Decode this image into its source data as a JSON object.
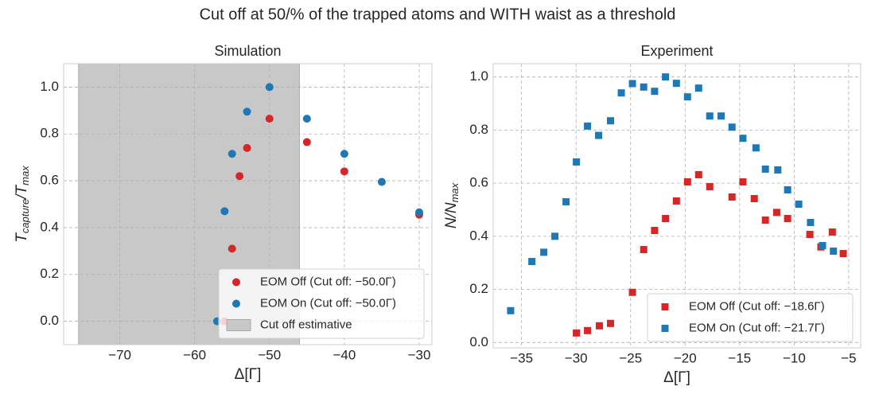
{
  "title": "Cut off at 50/% of the trapped atoms and WITH waist as a threshold",
  "chart_data": [
    {
      "type": "scatter",
      "title": "Simulation",
      "xlabel": "Δ[Γ]",
      "ylabel": [
        "T",
        "capture",
        "/T",
        "max"
      ],
      "marker": "circle",
      "grid": true,
      "legend": "lower right",
      "xlim": [
        -77.5,
        -28.3
      ],
      "ylim": [
        -0.1,
        1.1
      ],
      "xticks": [
        {
          "value": -70,
          "label": "−70"
        },
        {
          "value": -60,
          "label": "−60"
        },
        {
          "value": -50,
          "label": "−50"
        },
        {
          "value": -40,
          "label": "−40"
        },
        {
          "value": -30,
          "label": "−30"
        }
      ],
      "yticks": [
        {
          "value": 0,
          "label": "0.0"
        },
        {
          "value": 0.2,
          "label": "0.2"
        },
        {
          "value": 0.4,
          "label": "0.4"
        },
        {
          "value": 0.6,
          "label": "0.6"
        },
        {
          "value": 0.8,
          "label": "0.8"
        },
        {
          "value": 1,
          "label": "1.0"
        }
      ],
      "span": [
        -75.5,
        -46
      ],
      "span_color": "#c8c8c8",
      "span_label": "Cut off estimative",
      "series": [
        {
          "name": "EOM Off (Cut off: −50.0Γ)",
          "color": "#d62728",
          "x": [
            -56,
            -55,
            -54,
            -53,
            -50,
            -45,
            -40,
            -30
          ],
          "values": [
            0.0,
            0.31,
            0.62,
            0.74,
            0.865,
            0.765,
            0.64,
            0.455
          ]
        },
        {
          "name": "EOM On (Cut off: −50.0Γ)",
          "color": "#1f77b4",
          "x": [
            -57,
            -56,
            -55,
            -53,
            -50,
            -45,
            -40,
            -35,
            -30
          ],
          "values": [
            0.0,
            0.47,
            0.715,
            0.895,
            1.0,
            0.865,
            0.715,
            0.595,
            0.465
          ]
        }
      ]
    },
    {
      "type": "scatter",
      "title": "Experiment",
      "xlabel": "Δ[Γ]",
      "ylabel": [
        "N/N",
        "max"
      ],
      "marker": "square",
      "grid": true,
      "legend": "lower right",
      "xlim": [
        -37.6,
        -3.9
      ],
      "ylim": [
        -0.02,
        1.05
      ],
      "xticks": [
        {
          "value": -35,
          "label": "−35"
        },
        {
          "value": -30,
          "label": "−30"
        },
        {
          "value": -25,
          "label": "−25"
        },
        {
          "value": -20,
          "label": "−20"
        },
        {
          "value": -15,
          "label": "−15"
        },
        {
          "value": -10,
          "label": "−10"
        },
        {
          "value": -5,
          "label": "−5"
        }
      ],
      "yticks": [
        {
          "value": 0,
          "label": "0.0"
        },
        {
          "value": 0.2,
          "label": "0.2"
        },
        {
          "value": 0.4,
          "label": "0.4"
        },
        {
          "value": 0.6,
          "label": "0.6"
        },
        {
          "value": 0.8,
          "label": "0.8"
        },
        {
          "value": 1,
          "label": "1.0"
        }
      ],
      "series": [
        {
          "name": "EOM Off (Cut off: −18.6Γ)",
          "color": "#d62728",
          "x": [
            -29.97,
            -28.95,
            -27.86,
            -26.84,
            -24.83,
            -23.8,
            -22.8,
            -21.8,
            -20.8,
            -19.78,
            -18.76,
            -17.74,
            -15.7,
            -14.7,
            -13.66,
            -12.64,
            -11.6,
            -10.6,
            -8.56,
            -7.55,
            -6.5,
            -5.5
          ],
          "values": [
            0.036,
            0.045,
            0.063,
            0.072,
            0.189,
            0.35,
            0.422,
            0.467,
            0.533,
            0.605,
            0.632,
            0.587,
            0.548,
            0.605,
            0.542,
            0.461,
            0.49,
            0.467,
            0.407,
            0.36,
            0.416,
            0.335
          ]
        },
        {
          "name": "EOM On (Cut off: −21.7Γ)",
          "color": "#1f77b4",
          "x": [
            -36.0,
            -34.05,
            -32.96,
            -31.94,
            -30.92,
            -29.97,
            -28.95,
            -27.93,
            -26.84,
            -25.85,
            -24.83,
            -23.8,
            -22.8,
            -21.8,
            -20.8,
            -19.78,
            -18.76,
            -17.74,
            -16.7,
            -15.7,
            -14.7,
            -13.5,
            -12.64,
            -11.5,
            -10.6,
            -9.58,
            -8.5,
            -7.4,
            -6.4
          ],
          "values": [
            0.12,
            0.305,
            0.34,
            0.4,
            0.53,
            0.68,
            0.815,
            0.78,
            0.835,
            0.94,
            0.975,
            0.962,
            0.946,
            1.0,
            0.976,
            0.925,
            0.958,
            0.853,
            0.853,
            0.811,
            0.769,
            0.733,
            0.653,
            0.65,
            0.575,
            0.521,
            0.452,
            0.365,
            0.344
          ]
        }
      ]
    }
  ]
}
